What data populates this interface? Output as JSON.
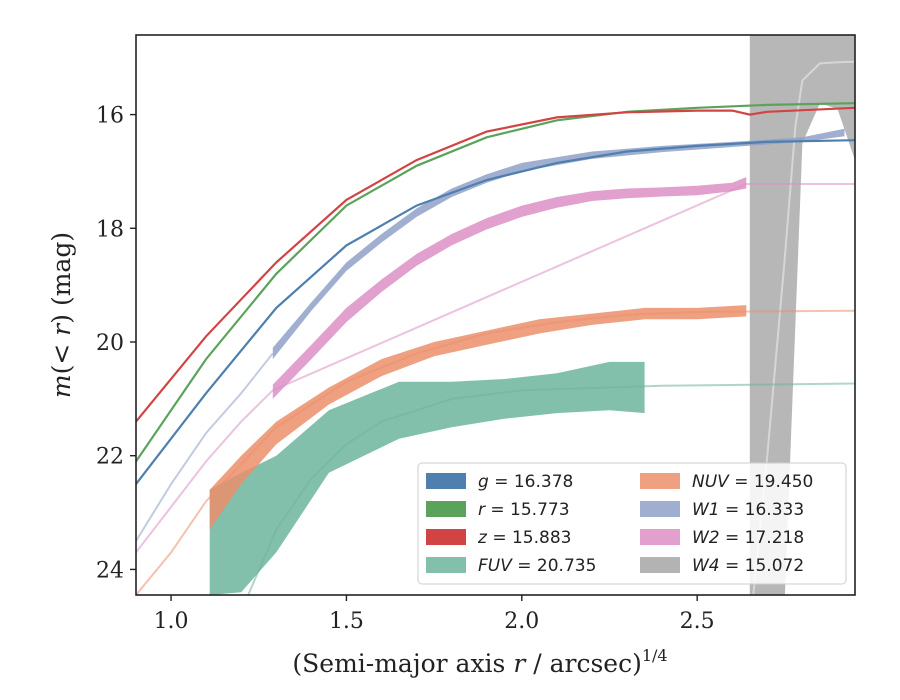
{
  "chart_data": {
    "type": "line",
    "title": "",
    "xlabel_main": "(Semi-major axis ",
    "xlabel_var": "r",
    "xlabel_tail": " / arcsec)",
    "xlabel_exp": "1/4",
    "ylabel_pre": "m(< ",
    "ylabel_var": "r",
    "ylabel_post": ") (mag)",
    "xlim": [
      0.9,
      2.95
    ],
    "ylim": [
      24.45,
      14.6
    ],
    "y_inverted": true,
    "xticks": [
      1.0,
      1.5,
      2.0,
      2.5
    ],
    "xtick_labels": [
      "1.0",
      "1.5",
      "2.0",
      "2.5"
    ],
    "yticks": [
      16,
      18,
      20,
      22,
      24
    ],
    "ytick_labels": [
      "16",
      "18",
      "20",
      "22",
      "24"
    ],
    "grid": false,
    "legend_position": "lower-right",
    "series": [
      {
        "name": "g",
        "label_value": "16.378",
        "color": "#4e7fae",
        "kind": "line",
        "x": [
          0.9,
          1.1,
          1.3,
          1.5,
          1.7,
          1.9,
          2.1,
          2.3,
          2.5,
          2.7,
          2.95
        ],
        "y": [
          22.5,
          20.9,
          19.4,
          18.3,
          17.6,
          17.15,
          16.85,
          16.65,
          16.55,
          16.48,
          16.45
        ]
      },
      {
        "name": "r",
        "label_value": "15.773",
        "color": "#5aa35a",
        "kind": "line",
        "x": [
          0.9,
          1.1,
          1.3,
          1.5,
          1.7,
          1.9,
          2.1,
          2.3,
          2.5,
          2.7,
          2.95
        ],
        "y": [
          22.1,
          20.3,
          18.8,
          17.6,
          16.9,
          16.4,
          16.1,
          15.95,
          15.88,
          15.83,
          15.8
        ]
      },
      {
        "name": "z",
        "label_value": "15.883",
        "color": "#d24444",
        "kind": "line",
        "x": [
          0.9,
          1.1,
          1.3,
          1.5,
          1.7,
          1.9,
          2.1,
          2.3,
          2.5,
          2.6,
          2.65,
          2.7,
          2.95
        ],
        "y": [
          21.4,
          19.9,
          18.6,
          17.5,
          16.8,
          16.3,
          16.05,
          15.96,
          15.93,
          15.93,
          16.0,
          15.95,
          15.88
        ]
      },
      {
        "name": "FUV",
        "label_value": "20.735",
        "color": "#6db59e",
        "kind": "band",
        "x": [
          1.11,
          1.2,
          1.3,
          1.45,
          1.65,
          1.8,
          1.95,
          2.1,
          2.25,
          2.35
        ],
        "y_upper": [
          22.6,
          22.3,
          22.0,
          21.2,
          20.7,
          20.7,
          20.65,
          20.55,
          20.35,
          20.35
        ],
        "y_lower": [
          24.45,
          24.4,
          23.7,
          22.3,
          21.7,
          21.5,
          21.35,
          21.25,
          21.2,
          21.25
        ],
        "model_x": [
          1.22,
          1.3,
          1.4,
          1.5,
          1.6,
          1.8,
          2.0,
          2.4,
          2.95
        ],
        "model_y": [
          24.45,
          23.3,
          22.4,
          21.8,
          21.4,
          21.0,
          20.85,
          20.77,
          20.73
        ]
      },
      {
        "name": "NUV",
        "label_value": "19.450",
        "color": "#eb8f6b",
        "kind": "band",
        "x": [
          1.11,
          1.2,
          1.3,
          1.45,
          1.6,
          1.75,
          1.9,
          2.05,
          2.2,
          2.35,
          2.5,
          2.64
        ],
        "y_upper": [
          22.6,
          22.0,
          21.4,
          20.8,
          20.3,
          20.0,
          19.8,
          19.6,
          19.5,
          19.4,
          19.4,
          19.35
        ],
        "y_lower": [
          23.3,
          22.5,
          21.8,
          21.1,
          20.6,
          20.25,
          20.05,
          19.85,
          19.7,
          19.6,
          19.6,
          19.55
        ],
        "model_x": [
          0.9,
          1.0,
          1.1,
          1.3,
          1.5,
          1.7,
          1.9,
          2.1,
          2.3,
          2.5,
          2.95
        ],
        "model_y": [
          24.45,
          23.7,
          22.8,
          21.5,
          20.7,
          20.2,
          19.85,
          19.65,
          19.52,
          19.47,
          19.45
        ]
      },
      {
        "name": "W1",
        "label_value": "16.333",
        "color": "#8fa1c8",
        "kind": "band",
        "x": [
          1.29,
          1.4,
          1.5,
          1.6,
          1.7,
          1.8,
          1.9,
          2.0,
          2.2,
          2.4,
          2.6,
          2.8,
          2.92
        ],
        "y_upper": [
          20.1,
          19.3,
          18.6,
          18.1,
          17.65,
          17.3,
          17.05,
          16.85,
          16.65,
          16.55,
          16.48,
          16.4,
          16.25
        ],
        "y_lower": [
          20.3,
          19.45,
          18.75,
          18.25,
          17.8,
          17.45,
          17.2,
          17.0,
          16.78,
          16.66,
          16.57,
          16.48,
          16.38
        ],
        "model_x": [
          0.9,
          1.0,
          1.1,
          1.2,
          1.29
        ],
        "model_y": [
          23.5,
          22.5,
          21.6,
          20.9,
          20.2
        ]
      },
      {
        "name": "W2",
        "label_value": "17.218",
        "color": "#dc8fc6",
        "kind": "band",
        "x": [
          1.29,
          1.4,
          1.5,
          1.6,
          1.7,
          1.8,
          1.9,
          2.0,
          2.1,
          2.2,
          2.3,
          2.4,
          2.5,
          2.6,
          2.64
        ],
        "y_upper": [
          20.75,
          20.05,
          19.4,
          18.9,
          18.45,
          18.1,
          17.82,
          17.6,
          17.45,
          17.35,
          17.3,
          17.28,
          17.25,
          17.2,
          17.1
        ],
        "y_lower": [
          21.0,
          20.3,
          19.65,
          19.12,
          18.66,
          18.3,
          18.02,
          17.8,
          17.64,
          17.52,
          17.47,
          17.44,
          17.42,
          17.35,
          17.3
        ],
        "model_x": [
          0.9,
          1.0,
          1.1,
          1.2,
          1.29,
          2.64,
          2.95
        ],
        "model_y": [
          23.7,
          22.9,
          22.1,
          21.4,
          20.85,
          17.22,
          17.22
        ]
      },
      {
        "name": "W4",
        "label_value": "15.072",
        "color": "#b3b3b3",
        "kind": "band",
        "x": [
          2.65,
          2.7,
          2.75,
          2.8,
          2.85,
          2.9,
          2.95
        ],
        "y_upper": [
          14.6,
          14.6,
          14.6,
          14.6,
          14.6,
          14.6,
          14.6
        ],
        "y_lower": [
          24.45,
          24.45,
          24.45,
          16.5,
          15.8,
          15.9,
          16.8
        ],
        "model_x": [
          2.66,
          2.7,
          2.75,
          2.78,
          2.8,
          2.85,
          2.9,
          2.95
        ],
        "model_y": [
          24.45,
          22.0,
          18.5,
          16.2,
          15.4,
          15.1,
          15.08,
          15.07
        ]
      }
    ],
    "legend_order": [
      "g",
      "r",
      "z",
      "FUV",
      "NUV",
      "W1",
      "W2",
      "W4"
    ]
  }
}
